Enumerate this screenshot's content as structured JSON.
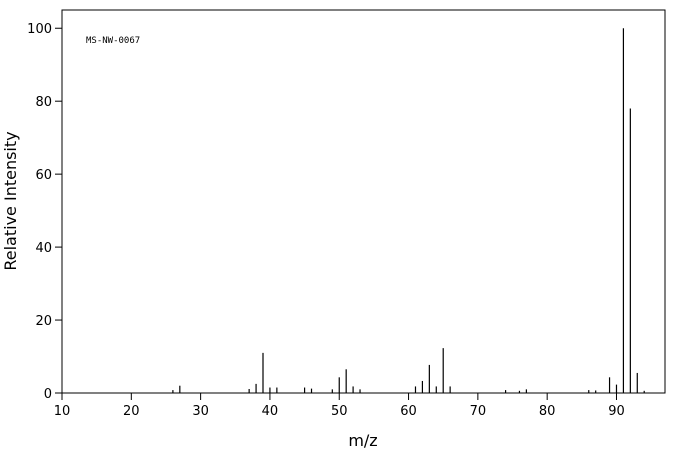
{
  "chart_data": {
    "type": "stick",
    "annotation": "MS-NW-0067",
    "x_label": "m/z",
    "y_label": "Relative Intensity",
    "xlim": [
      10,
      97
    ],
    "ylim": [
      0,
      105
    ],
    "xticks": [
      10,
      20,
      30,
      40,
      50,
      60,
      70,
      80,
      90
    ],
    "yticks": [
      0,
      20,
      40,
      60,
      80,
      100
    ],
    "color": "#000000",
    "x": [
      26,
      27,
      37,
      38,
      39,
      40,
      41,
      45,
      46,
      49,
      50,
      51,
      52,
      53,
      61,
      62,
      63,
      64,
      65,
      66,
      74,
      76,
      77,
      86,
      87,
      89,
      90,
      91,
      92,
      93,
      94
    ],
    "values": [
      0.8,
      2.0,
      1.1,
      2.5,
      11,
      1.5,
      1.5,
      1.5,
      1.2,
      1.0,
      4.3,
      6.5,
      1.8,
      1.0,
      1.8,
      3.3,
      7.7,
      1.8,
      12.3,
      1.8,
      0.8,
      0.6,
      1.0,
      0.8,
      0.7,
      4.3,
      2.3,
      100,
      78,
      5.5,
      0.6
    ]
  }
}
